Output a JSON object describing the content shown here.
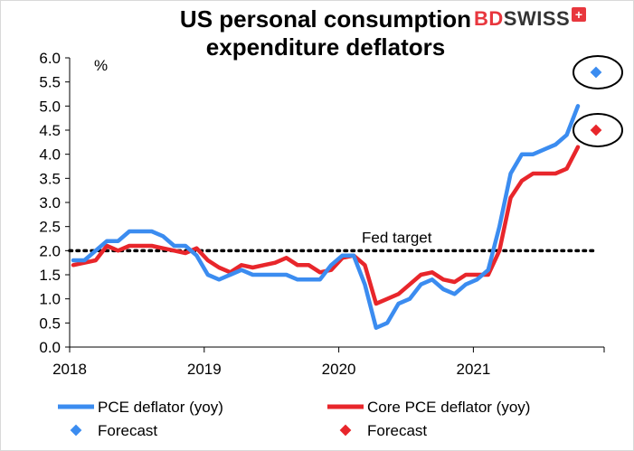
{
  "title_line1": "US personal consumption",
  "title_line2": "expenditure deflators",
  "logo": {
    "part1": "BD",
    "part2": "SWISS"
  },
  "chart_data": {
    "type": "line",
    "ylabel": "%",
    "ylim": [
      0,
      6
    ],
    "yticks": [
      "0.0",
      "0.5",
      "1.0",
      "1.5",
      "2.0",
      "2.5",
      "3.0",
      "3.5",
      "4.0",
      "4.5",
      "5.0",
      "5.5",
      "6.0"
    ],
    "xticks": [
      "2018",
      "2019",
      "2020",
      "2021"
    ],
    "x_start": "2018-01",
    "grid": false,
    "reference_line": {
      "label": "Fed target",
      "value": 2.0,
      "style": "dotted"
    },
    "series": [
      {
        "name": "PCE deflator (yoy)",
        "color": "#3b8cf0",
        "values": [
          1.8,
          1.8,
          2.0,
          2.2,
          2.2,
          2.4,
          2.4,
          2.4,
          2.3,
          2.1,
          2.1,
          1.9,
          1.5,
          1.4,
          1.5,
          1.6,
          1.5,
          1.5,
          1.5,
          1.5,
          1.4,
          1.4,
          1.4,
          1.7,
          1.9,
          1.9,
          1.3,
          0.4,
          0.5,
          0.9,
          1.0,
          1.3,
          1.4,
          1.2,
          1.1,
          1.3,
          1.4,
          1.6,
          2.5,
          3.6,
          4.0,
          4.0,
          4.1,
          4.2,
          4.4,
          5.0
        ]
      },
      {
        "name": "Core PCE deflator (yoy)",
        "color": "#e8262b",
        "values": [
          1.7,
          1.75,
          1.8,
          2.1,
          2.0,
          2.1,
          2.1,
          2.1,
          2.05,
          2.0,
          1.95,
          2.05,
          1.8,
          1.65,
          1.55,
          1.7,
          1.65,
          1.7,
          1.75,
          1.85,
          1.7,
          1.7,
          1.55,
          1.6,
          1.85,
          1.9,
          1.7,
          0.9,
          1.0,
          1.1,
          1.3,
          1.5,
          1.55,
          1.4,
          1.35,
          1.5,
          1.5,
          1.5,
          2.0,
          3.1,
          3.45,
          3.6,
          3.6,
          3.6,
          3.7,
          4.15
        ]
      }
    ],
    "forecasts": [
      {
        "label": "Forecast",
        "series": "PCE deflator (yoy)",
        "value": 5.7,
        "color": "#3b8cf0"
      },
      {
        "label": "Forecast",
        "series": "Core PCE deflator (yoy)",
        "value": 4.5,
        "color": "#e8262b"
      }
    ],
    "legend_position": "bottom"
  }
}
